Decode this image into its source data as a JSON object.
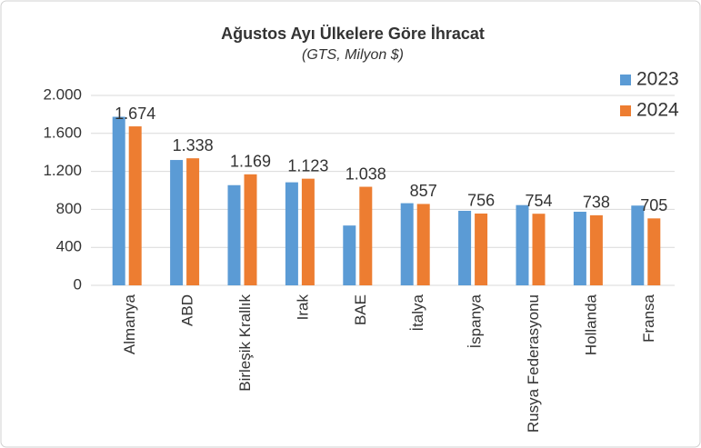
{
  "chart_data": {
    "type": "bar",
    "title": "Ağustos Ayı Ülkelere Göre İhracat",
    "subtitle": "(GTS, Milyon $)",
    "categories": [
      "Almanya",
      "ABD",
      "Birleşik Krallık",
      "Irak",
      "BAE",
      "İtalya",
      "İspanya",
      "Rusya Federasyonu",
      "Hollanda",
      "Fransa"
    ],
    "series": [
      {
        "name": "2023",
        "color": "#5b9bd5",
        "values": [
          1775,
          1320,
          1055,
          1085,
          630,
          865,
          785,
          845,
          775,
          840
        ]
      },
      {
        "name": "2024",
        "color": "#ed7d31",
        "values": [
          1674,
          1338,
          1169,
          1123,
          1038,
          857,
          756,
          754,
          738,
          705
        ],
        "value_labels": [
          "1.674",
          "1.338",
          "1.169",
          "1.123",
          "1.038",
          "857",
          "756",
          "754",
          "738",
          "705"
        ]
      }
    ],
    "ylim": [
      0,
      2000
    ],
    "yticks": [
      0,
      400,
      800,
      {
        "value": 1200,
        "label": "1.200"
      },
      {
        "value": 1600,
        "label": "1.600"
      },
      {
        "value": 2000,
        "label": "2.000"
      }
    ],
    "grid": true,
    "legend": "top-right"
  }
}
